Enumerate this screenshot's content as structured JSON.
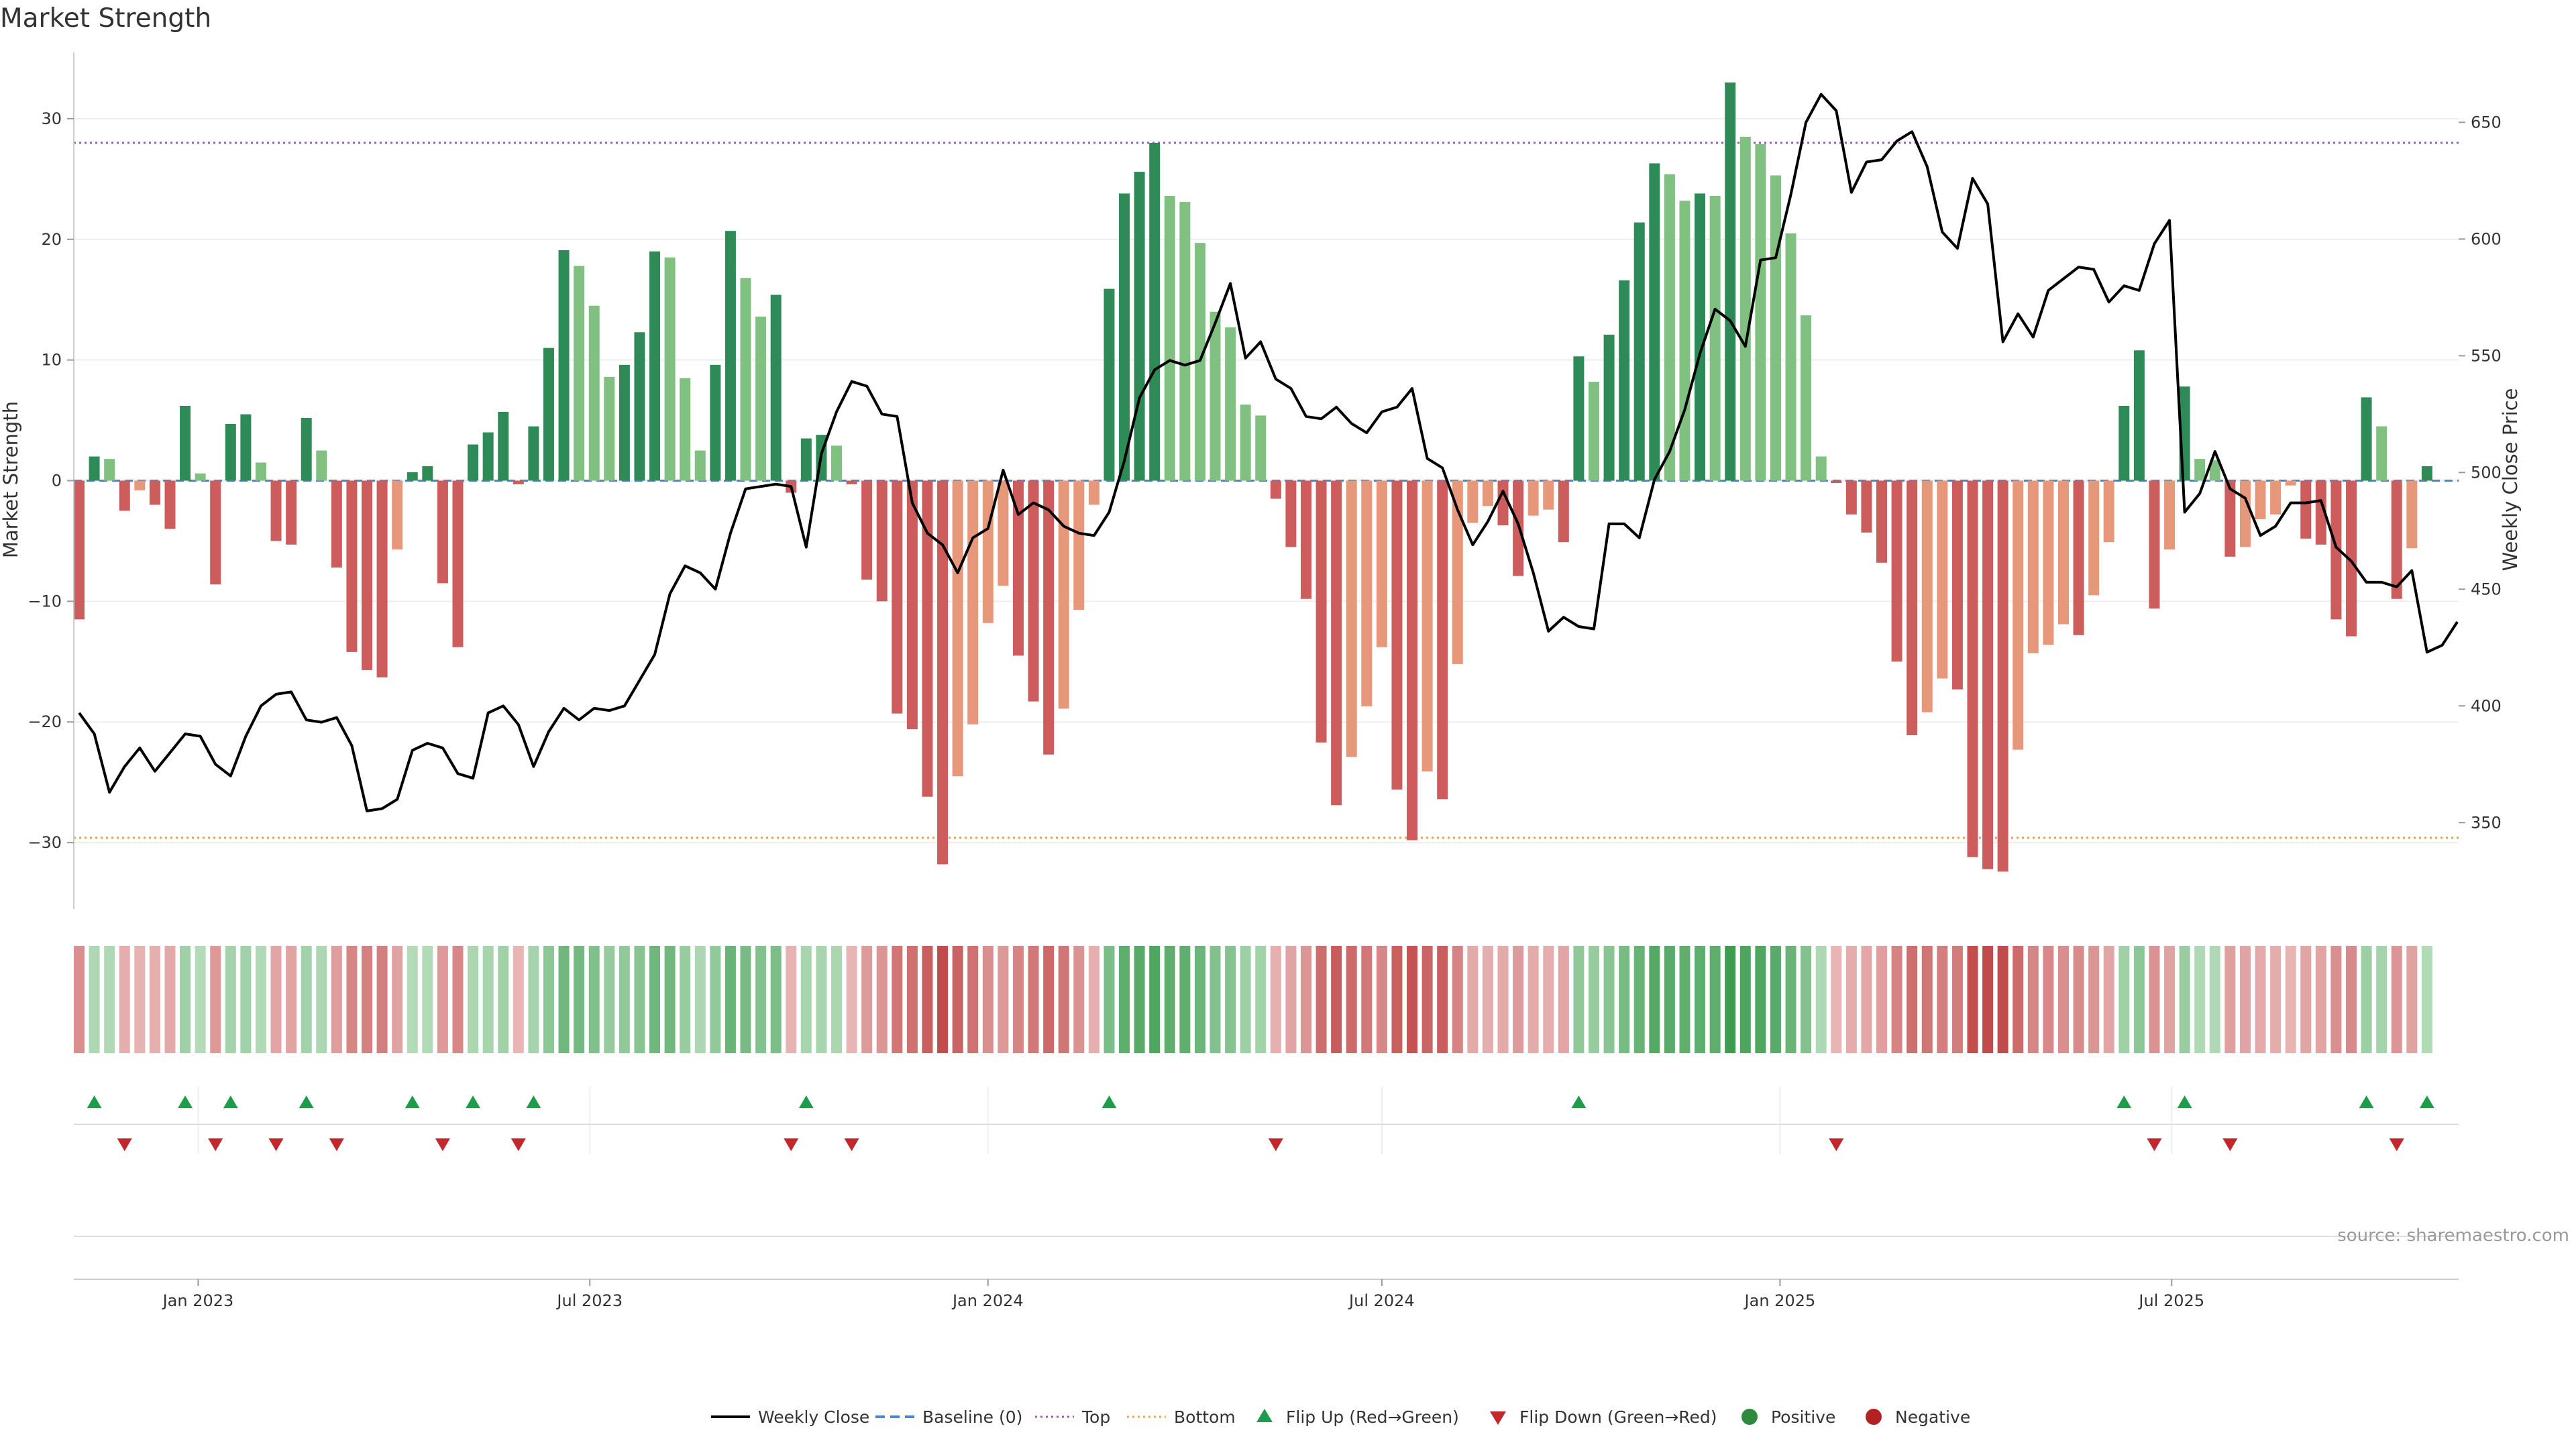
{
  "chart_data": {
    "type": "bar",
    "title": "Market Strength",
    "ylabel_left": "Market Strength",
    "ylabel_right": "Weekly Close Price",
    "source": "source: sharemaestro.com",
    "ylim_left": [
      -35.5,
      35.5
    ],
    "ylim_right": [
      313,
      680
    ],
    "yticks_left": [
      -30,
      -20,
      -10,
      0,
      10,
      20,
      30
    ],
    "yticks_right": [
      350,
      400,
      450,
      500,
      550,
      600,
      650
    ],
    "top_level": 28,
    "bottom_level": -29.6,
    "x_start": "2022-11-07",
    "x_step_days": 7,
    "xticks": [
      {
        "label": "Jan 2023",
        "date": "2023-01-01"
      },
      {
        "label": "Jul 2023",
        "date": "2023-07-01"
      },
      {
        "label": "Jan 2024",
        "date": "2024-01-01"
      },
      {
        "label": "Jul 2024",
        "date": "2024-07-01"
      },
      {
        "label": "Jan 2025",
        "date": "2025-01-01"
      },
      {
        "label": "Jul 2025",
        "date": "2025-07-01"
      }
    ],
    "legend": [
      {
        "label": "Weekly Close",
        "kind": "line",
        "color": "#000000"
      },
      {
        "label": "Baseline (0)",
        "kind": "dash",
        "color": "#4a86c8"
      },
      {
        "label": "Top",
        "kind": "dot",
        "color": "#9b59b6"
      },
      {
        "label": "Bottom",
        "kind": "dot",
        "color": "#e8a15a"
      },
      {
        "label": "Flip Up (Red→Green)",
        "kind": "tri-up",
        "color": "#1e9c4c"
      },
      {
        "label": "Flip Down (Green→Red)",
        "kind": "tri-down",
        "color": "#c0282d"
      },
      {
        "label": "Positive",
        "kind": "circle",
        "color": "#2e8b3e"
      },
      {
        "label": "Negative",
        "kind": "circle",
        "color": "#b22222"
      }
    ],
    "colors": {
      "pos_strong": "#2e8b57",
      "pos_weak": "#80c080",
      "neg_strong": "#cd5c5c",
      "neg_weak": "#e8987a",
      "flip_up": "#1e9c4c",
      "flip_down": "#c0282d",
      "top": "#9b59b6",
      "bottom": "#e8a15a",
      "baseline": "#4a86c8"
    },
    "strength": [
      -11.5,
      2,
      1.8,
      -2.5,
      -0.8,
      -2,
      -4,
      6.2,
      0.6,
      -8.6,
      4.7,
      5.5,
      1.5,
      -5,
      -5.3,
      5.2,
      2.5,
      -7.2,
      -14.2,
      -15.7,
      -16.3,
      -5.7,
      0.7,
      1.2,
      -8.5,
      -13.8,
      3,
      4,
      5.7,
      -0.3,
      4.5,
      11,
      19.1,
      17.8,
      14.5,
      8.6,
      9.6,
      12.3,
      19,
      18.5,
      8.5,
      2.5,
      9.6,
      20.7,
      16.8,
      13.6,
      15.4,
      -1,
      3.5,
      3.8,
      2.9,
      -0.3,
      -8.2,
      -10,
      -19.3,
      -20.6,
      -26.2,
      -31.8,
      -24.5,
      -20.2,
      -11.8,
      -8.7,
      -14.5,
      -18.3,
      -22.7,
      -18.9,
      -10.7,
      -2,
      15.9,
      23.8,
      25.6,
      28,
      23.6,
      23.1,
      19.7,
      14,
      12.7,
      6.3,
      5.4,
      -1.5,
      -5.5,
      -9.8,
      -21.7,
      -26.9,
      -22.9,
      -18.7,
      -13.8,
      -25.6,
      -29.8,
      -24.1,
      -26.4,
      -15.2,
      -3.5,
      -2.1,
      -3.7,
      -7.9,
      -2.9,
      -2.4,
      -5.1,
      10.3,
      8.2,
      12.1,
      16.6,
      21.4,
      26.3,
      25.4,
      23.2,
      23.8,
      23.6,
      33,
      28.5,
      27.9,
      25.3,
      20.5,
      13.7,
      2,
      -0.2,
      -2.8,
      -4.3,
      -6.8,
      -15,
      -21.1,
      -19.2,
      -16.4,
      -17.3,
      -31.2,
      -32.2,
      -32.4,
      -22.3,
      -14.3,
      -13.6,
      -11.9,
      -12.8,
      -9.5,
      -5.1,
      6.2,
      10.8,
      -10.6,
      -5.7,
      7.8,
      1.8,
      1.7,
      -6.3,
      -5.5,
      -3.2,
      -2.8,
      -0.4,
      -4.8,
      -5.3,
      -11.5,
      -12.9,
      6.9,
      4.5,
      -9.8,
      -5.6,
      1.2
    ],
    "close": [
      397,
      388,
      363,
      374,
      382,
      372,
      380,
      388,
      387,
      375,
      370,
      387,
      400,
      405,
      406,
      394,
      393,
      395,
      383,
      355,
      356,
      360,
      381,
      384,
      382,
      371,
      369,
      397,
      400,
      392,
      374,
      389,
      399,
      394,
      399,
      398,
      400,
      411,
      422,
      448,
      460,
      457,
      450,
      474,
      493,
      494,
      495,
      494,
      468,
      508,
      526,
      539,
      537,
      525,
      524,
      487,
      474,
      469,
      457,
      472,
      476,
      501,
      482,
      487,
      484,
      477,
      474,
      473,
      483,
      505,
      532,
      544,
      548,
      546,
      548,
      564,
      581,
      549,
      556,
      540,
      536,
      524,
      523,
      528,
      521,
      517,
      526,
      528,
      536,
      506,
      502,
      484,
      469,
      479,
      492,
      478,
      457,
      432,
      438,
      434,
      433,
      478,
      478,
      472,
      497,
      509,
      527,
      551,
      570,
      565,
      554,
      591,
      592,
      619,
      650,
      662,
      655,
      620,
      633,
      634,
      642,
      646,
      631,
      603,
      596,
      626,
      615,
      556,
      568,
      558,
      578,
      583,
      588,
      587,
      573,
      580,
      578,
      598,
      608,
      483,
      491,
      509,
      493,
      489,
      473,
      477,
      487,
      487,
      488,
      468,
      462,
      453,
      453,
      451,
      458,
      423,
      426,
      436
    ]
  }
}
